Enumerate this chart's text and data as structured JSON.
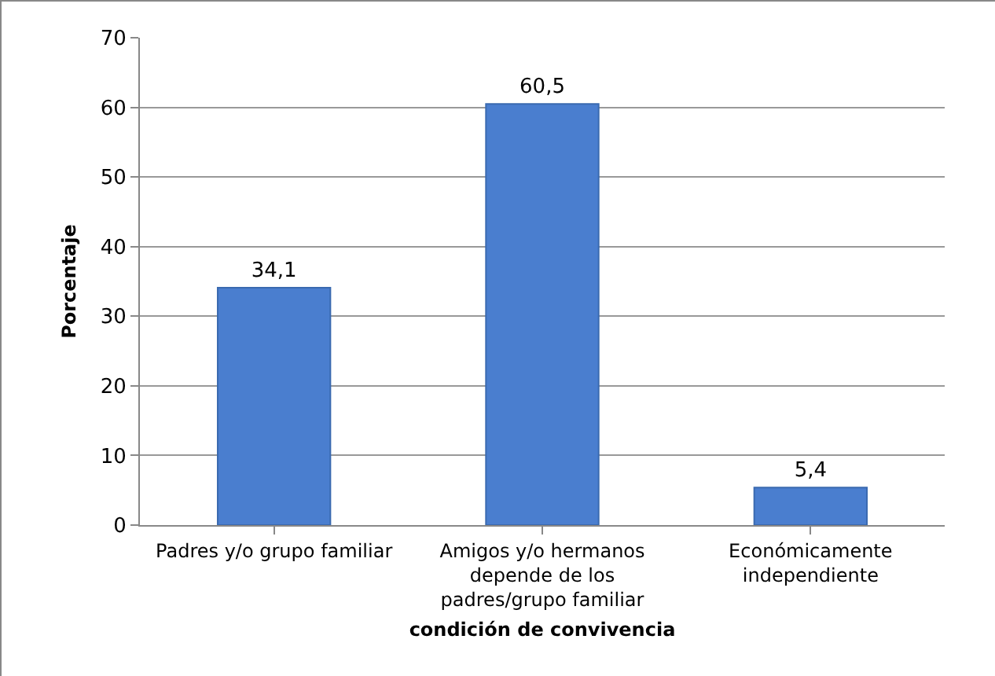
{
  "chart_data": {
    "type": "bar",
    "categories": [
      "Padres y/o grupo familiar",
      "Amigos y/o hermanos depende de los padres/grupo familiar",
      "Económicamente independiente"
    ],
    "values": [
      34.1,
      60.5,
      5.4
    ],
    "value_labels": [
      "34,1",
      "60,5",
      "5,4"
    ],
    "color": "#4a7ecf",
    "xlabel": "condición de convivencia",
    "ylabel": "Porcentaje",
    "ylim": [
      0,
      70
    ],
    "yticks": [
      0,
      10,
      20,
      30,
      40,
      50,
      60,
      70
    ],
    "grid": "y"
  }
}
